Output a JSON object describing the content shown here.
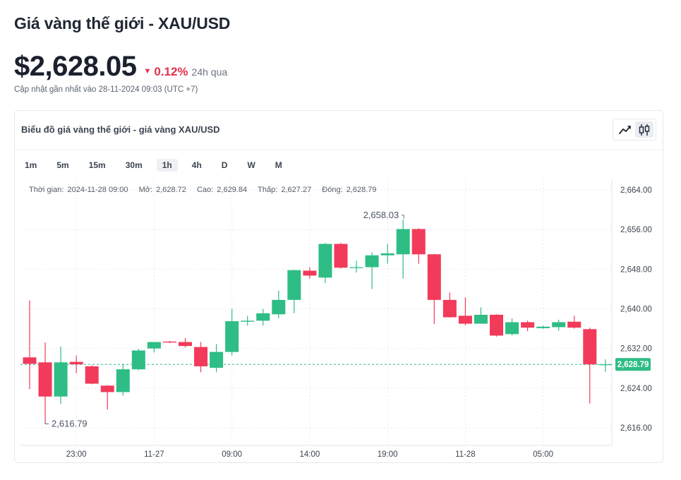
{
  "page": {
    "title": "Giá vàng thế giới - XAU/USD",
    "price": "$2,628.05",
    "change": "0.12%",
    "change_period": "24h qua",
    "updated": "Cập nhật gần nhất vào 28-11-2024 09:03 (UTC +7)"
  },
  "card": {
    "title": "Biểu đồ giá vàng thế giới - giá vàng XAU/USD",
    "modes": [
      "line-chart-icon",
      "candlestick-icon"
    ],
    "active_mode": "candlestick-icon"
  },
  "timeframes": [
    "1m",
    "5m",
    "15m",
    "30m",
    "1h",
    "4h",
    "D",
    "W",
    "M"
  ],
  "active_timeframe": "1h",
  "ohlc": {
    "time_label": "Thời gian:",
    "time": "2024-11-28 09:00",
    "open_label": "Mở:",
    "open": "2,628.72",
    "high_label": "Cao:",
    "high": "2,629.84",
    "low_label": "Thấp:",
    "low": "2,627.27",
    "close_label": "Đóng:",
    "close": "2,628.79"
  },
  "colors": {
    "up": "#2ebd85",
    "down": "#f23a5a",
    "grid": "#e8eaee",
    "axis_text": "#3c4450",
    "price_line": "#2ebd85"
  },
  "chart_data": {
    "type": "candlestick",
    "ylim": [
      2612,
      2666
    ],
    "y_ticks": [
      "2,616.00",
      "2,624.00",
      "2,632.00",
      "2,640.00",
      "2,648.00",
      "2,656.00",
      "2,664.00"
    ],
    "x_ticks": [
      "23:00",
      "11-27",
      "09:00",
      "14:00",
      "19:00",
      "11-28",
      "05:00"
    ],
    "x_tick_index": [
      3,
      8,
      13,
      18,
      23,
      28,
      33
    ],
    "current_price": 2628.79,
    "current_price_label": "2,628.79",
    "annotations": [
      {
        "label": "2,658.03",
        "index": 24,
        "value": 2658.03,
        "side": "top"
      },
      {
        "label": "2,616.79",
        "index": 1,
        "value": 2616.79,
        "side": "bottom"
      }
    ],
    "candles": [
      {
        "o": 2630.2,
        "h": 2641.7,
        "l": 2623.8,
        "c": 2628.9
      },
      {
        "o": 2629.2,
        "h": 2633.2,
        "l": 2616.8,
        "c": 2622.3
      },
      {
        "o": 2622.3,
        "h": 2632.4,
        "l": 2620.8,
        "c": 2629.2
      },
      {
        "o": 2629.3,
        "h": 2630.6,
        "l": 2627.0,
        "c": 2628.8
      },
      {
        "o": 2628.4,
        "h": 2628.6,
        "l": 2624.8,
        "c": 2624.9
      },
      {
        "o": 2624.5,
        "h": 2624.6,
        "l": 2619.7,
        "c": 2623.2
      },
      {
        "o": 2623.2,
        "h": 2628.9,
        "l": 2622.5,
        "c": 2627.8
      },
      {
        "o": 2627.8,
        "h": 2631.9,
        "l": 2627.6,
        "c": 2631.6
      },
      {
        "o": 2632.0,
        "h": 2632.9,
        "l": 2631.2,
        "c": 2633.3
      },
      {
        "o": 2633.4,
        "h": 2633.5,
        "l": 2633.1,
        "c": 2633.2
      },
      {
        "o": 2633.3,
        "h": 2634.1,
        "l": 2632.2,
        "c": 2632.5
      },
      {
        "o": 2632.3,
        "h": 2633.3,
        "l": 2627.2,
        "c": 2628.4
      },
      {
        "o": 2628.1,
        "h": 2632.9,
        "l": 2627.2,
        "c": 2631.3
      },
      {
        "o": 2631.3,
        "h": 2640.0,
        "l": 2630.6,
        "c": 2637.5
      },
      {
        "o": 2637.4,
        "h": 2638.6,
        "l": 2636.6,
        "c": 2637.6
      },
      {
        "o": 2637.6,
        "h": 2640.0,
        "l": 2636.6,
        "c": 2639.1
      },
      {
        "o": 2638.9,
        "h": 2643.7,
        "l": 2638.1,
        "c": 2641.8
      },
      {
        "o": 2641.8,
        "h": 2647.9,
        "l": 2639.1,
        "c": 2647.8
      },
      {
        "o": 2647.7,
        "h": 2648.4,
        "l": 2646.1,
        "c": 2646.7
      },
      {
        "o": 2646.3,
        "h": 2653.3,
        "l": 2645.2,
        "c": 2653.1
      },
      {
        "o": 2653.1,
        "h": 2653.3,
        "l": 2648.1,
        "c": 2648.3
      },
      {
        "o": 2648.3,
        "h": 2649.7,
        "l": 2647.3,
        "c": 2648.4
      },
      {
        "o": 2648.4,
        "h": 2651.4,
        "l": 2644.0,
        "c": 2650.8
      },
      {
        "o": 2650.8,
        "h": 2653.1,
        "l": 2649.1,
        "c": 2651.2
      },
      {
        "o": 2651.0,
        "h": 2658.0,
        "l": 2646.1,
        "c": 2656.1
      },
      {
        "o": 2656.1,
        "h": 2656.3,
        "l": 2649.1,
        "c": 2651.0
      },
      {
        "o": 2651.0,
        "h": 2651.1,
        "l": 2636.9,
        "c": 2641.8
      },
      {
        "o": 2641.8,
        "h": 2643.3,
        "l": 2638.2,
        "c": 2638.3
      },
      {
        "o": 2638.6,
        "h": 2642.3,
        "l": 2636.7,
        "c": 2637.0
      },
      {
        "o": 2637.0,
        "h": 2640.3,
        "l": 2637.0,
        "c": 2638.8
      },
      {
        "o": 2638.8,
        "h": 2638.9,
        "l": 2634.4,
        "c": 2634.6
      },
      {
        "o": 2634.9,
        "h": 2638.1,
        "l": 2634.6,
        "c": 2637.3
      },
      {
        "o": 2637.3,
        "h": 2637.6,
        "l": 2635.5,
        "c": 2636.2
      },
      {
        "o": 2636.1,
        "h": 2636.6,
        "l": 2636.0,
        "c": 2636.4
      },
      {
        "o": 2636.3,
        "h": 2637.8,
        "l": 2635.6,
        "c": 2637.3
      },
      {
        "o": 2637.4,
        "h": 2638.6,
        "l": 2636.0,
        "c": 2636.2
      },
      {
        "o": 2635.9,
        "h": 2636.2,
        "l": 2620.9,
        "c": 2628.8
      },
      {
        "o": 2628.7,
        "h": 2629.8,
        "l": 2627.3,
        "c": 2628.8
      }
    ]
  }
}
